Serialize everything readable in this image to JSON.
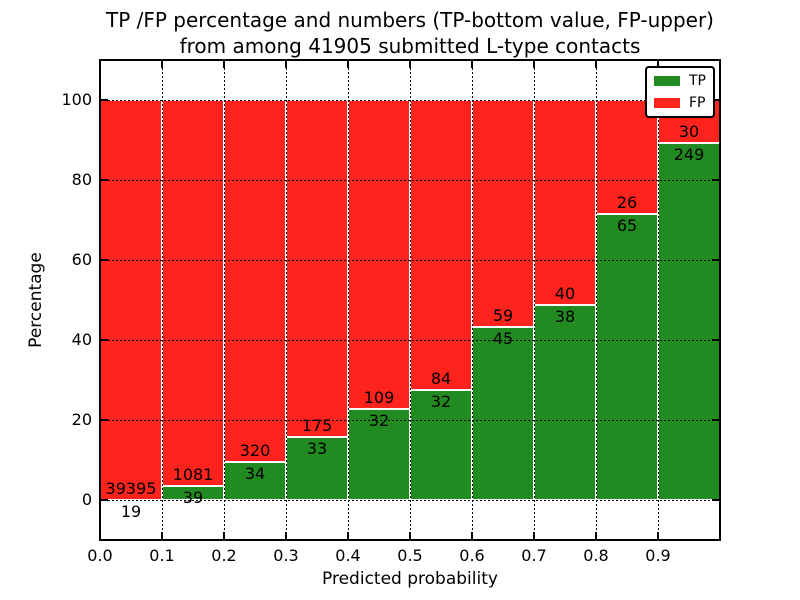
{
  "title": {
    "line1": "TP /FP percentage and numbers (TP-bottom value, FP-upper)",
    "line2": "from among 41905 submitted L-type contacts"
  },
  "axes": {
    "ylabel": "Percentage",
    "xlabel": "Predicted probability",
    "yticks": [
      0,
      20,
      40,
      60,
      80,
      100
    ],
    "xticks": [
      "0.0",
      "0.1",
      "0.2",
      "0.3",
      "0.4",
      "0.5",
      "0.6",
      "0.7",
      "0.8",
      "0.9"
    ],
    "ylim": [
      -10,
      110
    ],
    "xlim": [
      0.0,
      1.0
    ]
  },
  "legend": {
    "position": "upper-right",
    "items": [
      {
        "label": "TP",
        "color": "#218a21"
      },
      {
        "label": "FP",
        "color": "#fe231c"
      }
    ]
  },
  "chart_data": {
    "type": "bar",
    "stacked": true,
    "title": "TP /FP percentage and numbers (TP-bottom value, FP-upper) from among 41905 submitted L-type contacts",
    "xlabel": "Predicted probability",
    "ylabel": "Percentage",
    "total_submitted_contacts": 41905,
    "bin_edges": [
      0.0,
      0.1,
      0.2,
      0.3,
      0.4,
      0.5,
      0.6,
      0.7,
      0.8,
      0.9,
      1.0
    ],
    "categories": [
      "0.0-0.1",
      "0.1-0.2",
      "0.2-0.3",
      "0.3-0.4",
      "0.4-0.5",
      "0.5-0.6",
      "0.6-0.7",
      "0.7-0.8",
      "0.8-0.9",
      "0.9-1.0"
    ],
    "series": [
      {
        "name": "TP",
        "color": "#218a21",
        "counts": [
          19,
          39,
          34,
          33,
          32,
          32,
          45,
          38,
          65,
          249
        ],
        "percent": [
          0.05,
          3.48,
          9.6,
          15.87,
          22.7,
          27.59,
          43.27,
          48.72,
          71.43,
          89.25
        ]
      },
      {
        "name": "FP",
        "color": "#fe231c",
        "counts": [
          39395,
          1081,
          320,
          175,
          109,
          84,
          59,
          40,
          26,
          30
        ],
        "percent": [
          99.95,
          96.52,
          90.4,
          84.13,
          77.3,
          72.41,
          56.73,
          51.28,
          28.57,
          10.75
        ]
      }
    ],
    "bars_sum_to": 100,
    "value_labels": "TP count below segment boundary, FP count above segment boundary",
    "ylim": [
      -10,
      110
    ],
    "yticks": [
      0,
      20,
      40,
      60,
      80,
      100
    ],
    "grid": "dotted, both axes, drawn over bars",
    "bar_edge_color": "#ffffff",
    "legend_position": "upper right"
  }
}
